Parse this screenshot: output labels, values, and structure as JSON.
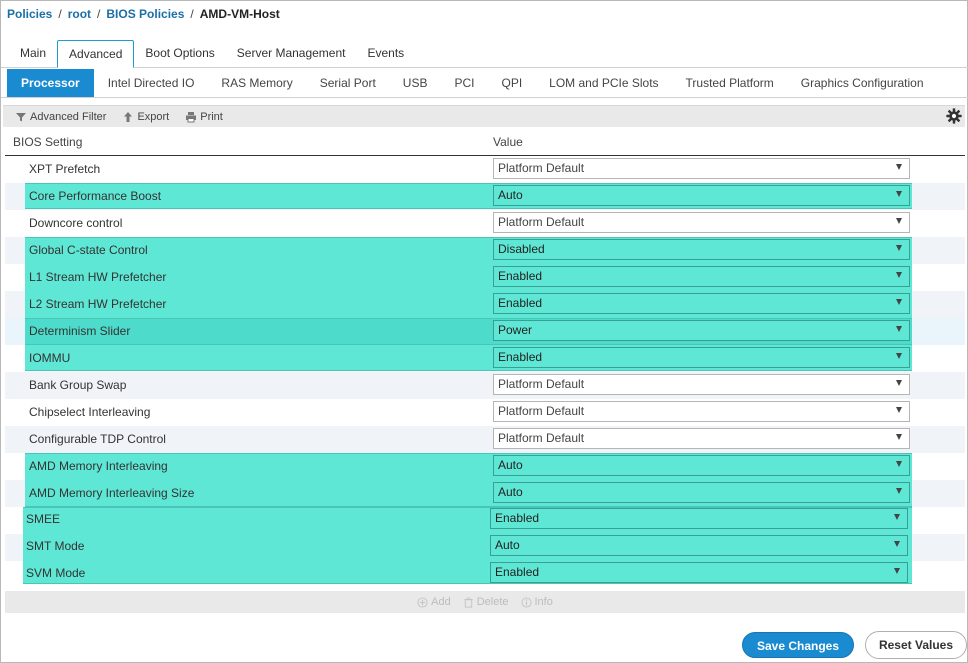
{
  "breadcrumb": {
    "items": [
      "Policies",
      "root",
      "BIOS Policies"
    ],
    "current": "AMD-VM-Host",
    "separator": "/"
  },
  "main_tabs": [
    {
      "label": "Main",
      "active": false
    },
    {
      "label": "Advanced",
      "active": true
    },
    {
      "label": "Boot Options",
      "active": false
    },
    {
      "label": "Server Management",
      "active": false
    },
    {
      "label": "Events",
      "active": false
    }
  ],
  "sub_tabs": [
    {
      "label": "Processor",
      "active": true
    },
    {
      "label": "Intel Directed IO",
      "active": false
    },
    {
      "label": "RAS Memory",
      "active": false
    },
    {
      "label": "Serial Port",
      "active": false
    },
    {
      "label": "USB",
      "active": false
    },
    {
      "label": "PCI",
      "active": false
    },
    {
      "label": "QPI",
      "active": false
    },
    {
      "label": "LOM and PCIe Slots",
      "active": false
    },
    {
      "label": "Trusted Platform",
      "active": false
    },
    {
      "label": "Graphics Configuration",
      "active": false
    }
  ],
  "toolbar": {
    "filter_label": "Advanced Filter",
    "export_label": "Export",
    "print_label": "Print",
    "settings_icon": "gear-icon"
  },
  "table": {
    "col_setting": "BIOS Setting",
    "col_value": "Value",
    "rows": [
      {
        "setting": "XPT Prefetch",
        "value": "Platform Default",
        "highlighted": false
      },
      {
        "setting": "Core Performance Boost",
        "value": "Auto",
        "highlighted": true
      },
      {
        "setting": "Downcore control",
        "value": "Platform Default",
        "highlighted": false
      },
      {
        "setting": "Global C-state Control",
        "value": "Disabled",
        "highlighted": true
      },
      {
        "setting": "L1 Stream HW Prefetcher",
        "value": "Enabled",
        "highlighted": true
      },
      {
        "setting": "L2 Stream HW Prefetcher",
        "value": "Enabled",
        "highlighted": true
      },
      {
        "setting": "Determinism Slider",
        "value": "Power",
        "highlighted": true
      },
      {
        "setting": "IOMMU",
        "value": "Enabled",
        "highlighted": true
      },
      {
        "setting": "Bank Group Swap",
        "value": "Platform Default",
        "highlighted": false
      },
      {
        "setting": "Chipselect Interleaving",
        "value": "Platform Default",
        "highlighted": false
      },
      {
        "setting": "Configurable TDP Control",
        "value": "Platform Default",
        "highlighted": false
      },
      {
        "setting": "AMD Memory Interleaving",
        "value": "Auto",
        "highlighted": true
      },
      {
        "setting": "AMD Memory Interleaving Size",
        "value": "Auto",
        "highlighted": true
      },
      {
        "setting": "SMEE",
        "value": "Enabled",
        "highlighted": true
      },
      {
        "setting": "SMT Mode",
        "value": "Auto",
        "highlighted": true
      },
      {
        "setting": "SVM Mode",
        "value": "Enabled",
        "highlighted": true
      }
    ]
  },
  "table_footer": {
    "add_label": "Add",
    "delete_label": "Delete",
    "info_label": "Info"
  },
  "actions": {
    "save_label": "Save Changes",
    "reset_label": "Reset Values"
  },
  "colors": {
    "link": "#1b6fa8",
    "accent": "#1a8bd0",
    "highlight": "#5ee7d5"
  }
}
